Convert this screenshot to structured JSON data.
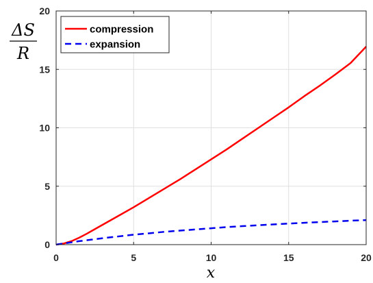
{
  "chart_data": {
    "type": "line",
    "xlabel": "x",
    "ylabel": {
      "numerator": "ΔS",
      "denominator": "R"
    },
    "xlim": [
      0,
      20
    ],
    "ylim": [
      0,
      20
    ],
    "xticks": [
      "0",
      "5",
      "10",
      "15",
      "20"
    ],
    "yticks": [
      "0",
      "5",
      "10",
      "15",
      "20"
    ],
    "grid": true,
    "legend_position": "top-left",
    "series": [
      {
        "name": "compression",
        "color": "#ff0000",
        "style": "solid",
        "x": [
          0,
          0.5,
          1,
          1.5,
          2,
          3,
          4,
          5,
          6,
          7,
          8,
          9,
          10,
          11,
          12,
          13,
          14,
          15,
          16,
          17,
          18,
          19,
          20
        ],
        "y": [
          0,
          0.1,
          0.3,
          0.6,
          0.95,
          1.7,
          2.45,
          3.2,
          4.0,
          4.8,
          5.6,
          6.45,
          7.3,
          8.15,
          9.05,
          9.95,
          10.85,
          11.75,
          12.7,
          13.6,
          14.55,
          15.55,
          16.95
        ]
      },
      {
        "name": "expansion",
        "color": "#0000ee",
        "style": "dashed",
        "x": [
          0,
          0.5,
          1,
          1.5,
          2,
          3,
          4,
          5,
          6,
          7,
          8,
          9,
          10,
          11,
          12,
          13,
          14,
          15,
          16,
          17,
          18,
          19,
          20
        ],
        "y": [
          0,
          0.1,
          0.2,
          0.3,
          0.38,
          0.55,
          0.7,
          0.85,
          0.97,
          1.1,
          1.2,
          1.3,
          1.4,
          1.5,
          1.58,
          1.66,
          1.73,
          1.8,
          1.87,
          1.93,
          1.99,
          2.05,
          2.1
        ]
      }
    ]
  }
}
